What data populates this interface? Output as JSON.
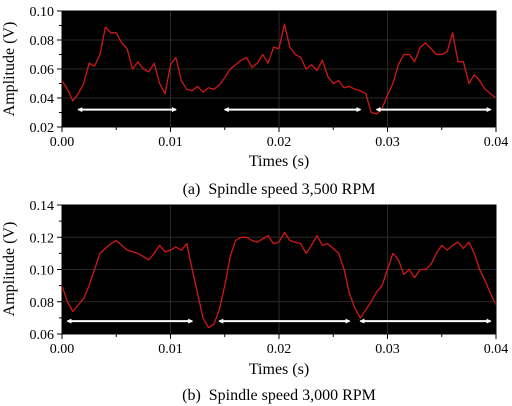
{
  "chart_data": [
    {
      "type": "line",
      "caption": "(a)  Spindle speed 3,500 RPM",
      "xlabel": "Times (s)",
      "ylabel": "Amplitude (V)",
      "xlim": [
        0,
        0.04
      ],
      "ylim": [
        0.02,
        0.1
      ],
      "x_ticks": [
        0.0,
        0.01,
        0.02,
        0.03,
        0.04
      ],
      "x_tick_labels": [
        "0.00",
        "0.01",
        "0.02",
        "0.03",
        "0.04"
      ],
      "y_ticks": [
        0.02,
        0.04,
        0.06,
        0.08,
        0.1
      ],
      "y_tick_labels": [
        "0.02",
        "0.04",
        "0.06",
        "0.08",
        "0.10"
      ],
      "background": "#000000",
      "line_color": "#d01818",
      "arrow_color": "#ffffff",
      "series": [
        {
          "x": [
            0.0,
            0.0005,
            0.001,
            0.0015,
            0.002,
            0.0025,
            0.003,
            0.0035,
            0.004,
            0.0045,
            0.005,
            0.0055,
            0.006,
            0.0065,
            0.007,
            0.0075,
            0.008,
            0.0085,
            0.009,
            0.0095,
            0.01,
            0.0105,
            0.011,
            0.0115,
            0.012,
            0.0125,
            0.013,
            0.0135,
            0.014,
            0.0145,
            0.015,
            0.0155,
            0.016,
            0.0165,
            0.017,
            0.0175,
            0.018,
            0.0185,
            0.019,
            0.0195,
            0.02,
            0.0205,
            0.021,
            0.0215,
            0.022,
            0.0225,
            0.023,
            0.0235,
            0.024,
            0.0245,
            0.025,
            0.0255,
            0.026,
            0.0265,
            0.027,
            0.0275,
            0.028,
            0.0285,
            0.029,
            0.0295,
            0.03,
            0.0305,
            0.031,
            0.0315,
            0.032,
            0.0325,
            0.033,
            0.0335,
            0.034,
            0.0345,
            0.035,
            0.0355,
            0.036,
            0.0365,
            0.037,
            0.0375,
            0.038,
            0.0385,
            0.039,
            0.0395,
            0.04
          ],
          "y": [
            0.052,
            0.046,
            0.038,
            0.043,
            0.05,
            0.064,
            0.062,
            0.07,
            0.089,
            0.085,
            0.085,
            0.078,
            0.074,
            0.06,
            0.065,
            0.06,
            0.058,
            0.064,
            0.05,
            0.043,
            0.063,
            0.068,
            0.052,
            0.046,
            0.045,
            0.048,
            0.044,
            0.047,
            0.046,
            0.049,
            0.054,
            0.06,
            0.063,
            0.066,
            0.068,
            0.061,
            0.064,
            0.07,
            0.064,
            0.075,
            0.074,
            0.091,
            0.075,
            0.07,
            0.068,
            0.06,
            0.063,
            0.059,
            0.066,
            0.055,
            0.05,
            0.052,
            0.047,
            0.048,
            0.046,
            0.045,
            0.043,
            0.03,
            0.029,
            0.033,
            0.042,
            0.05,
            0.063,
            0.07,
            0.07,
            0.065,
            0.075,
            0.078,
            0.074,
            0.07,
            0.07,
            0.072,
            0.085,
            0.065,
            0.065,
            0.05,
            0.056,
            0.052,
            0.046,
            0.043,
            0.04
          ]
        }
      ],
      "arrows": [
        [
          0.0015,
          0.0105
        ],
        [
          0.015,
          0.0275
        ],
        [
          0.029,
          0.0395
        ]
      ],
      "arrow_y": 0.032
    },
    {
      "type": "line",
      "caption": "(b)  Spindle speed 3,000 RPM",
      "xlabel": "Times (s)",
      "ylabel": "Amplitude (V)",
      "xlim": [
        0,
        0.04
      ],
      "ylim": [
        0.06,
        0.14
      ],
      "x_ticks": [
        0.0,
        0.01,
        0.02,
        0.03,
        0.04
      ],
      "x_tick_labels": [
        "0.00",
        "0.01",
        "0.02",
        "0.03",
        "0.04"
      ],
      "y_ticks": [
        0.06,
        0.08,
        0.1,
        0.12,
        0.14
      ],
      "y_tick_labels": [
        "0.06",
        "0.08",
        "0.10",
        "0.12",
        "0.14"
      ],
      "background": "#000000",
      "line_color": "#d01818",
      "arrow_color": "#ffffff",
      "series": [
        {
          "x": [
            0.0,
            0.0005,
            0.001,
            0.0015,
            0.002,
            0.0025,
            0.003,
            0.0035,
            0.004,
            0.0045,
            0.005,
            0.0055,
            0.006,
            0.0065,
            0.007,
            0.0075,
            0.008,
            0.0085,
            0.009,
            0.0095,
            0.01,
            0.0105,
            0.011,
            0.0115,
            0.012,
            0.0125,
            0.013,
            0.0135,
            0.014,
            0.0145,
            0.015,
            0.0155,
            0.016,
            0.0165,
            0.017,
            0.0175,
            0.018,
            0.0185,
            0.019,
            0.0195,
            0.02,
            0.0205,
            0.021,
            0.0215,
            0.022,
            0.0225,
            0.023,
            0.0235,
            0.024,
            0.0245,
            0.025,
            0.0255,
            0.026,
            0.0265,
            0.027,
            0.0275,
            0.028,
            0.0285,
            0.029,
            0.0295,
            0.03,
            0.0305,
            0.031,
            0.0315,
            0.032,
            0.0325,
            0.033,
            0.0335,
            0.034,
            0.0345,
            0.035,
            0.0355,
            0.036,
            0.0365,
            0.037,
            0.0375,
            0.038,
            0.0385,
            0.039,
            0.0395,
            0.04
          ],
          "y": [
            0.09,
            0.08,
            0.074,
            0.078,
            0.082,
            0.09,
            0.1,
            0.11,
            0.113,
            0.116,
            0.118,
            0.115,
            0.112,
            0.111,
            0.11,
            0.108,
            0.106,
            0.11,
            0.115,
            0.111,
            0.112,
            0.114,
            0.112,
            0.116,
            0.1,
            0.085,
            0.07,
            0.064,
            0.066,
            0.075,
            0.09,
            0.108,
            0.118,
            0.12,
            0.12,
            0.118,
            0.117,
            0.119,
            0.121,
            0.116,
            0.117,
            0.123,
            0.118,
            0.117,
            0.116,
            0.11,
            0.115,
            0.121,
            0.115,
            0.116,
            0.113,
            0.11,
            0.1,
            0.085,
            0.076,
            0.07,
            0.075,
            0.08,
            0.086,
            0.09,
            0.1,
            0.11,
            0.106,
            0.097,
            0.1,
            0.095,
            0.1,
            0.1,
            0.103,
            0.11,
            0.115,
            0.112,
            0.115,
            0.117,
            0.113,
            0.117,
            0.11,
            0.1,
            0.093,
            0.085,
            0.078
          ]
        }
      ],
      "arrows": [
        [
          0.0005,
          0.012
        ],
        [
          0.0145,
          0.0265
        ],
        [
          0.0275,
          0.0395
        ]
      ],
      "arrow_y": 0.068
    }
  ]
}
